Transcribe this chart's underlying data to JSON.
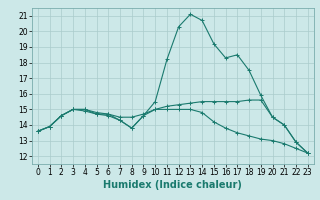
{
  "title": "",
  "xlabel": "Humidex (Indice chaleur)",
  "background_color": "#cce8e8",
  "grid_color": "#aacccc",
  "line_color": "#1a7a6e",
  "xlim": [
    -0.5,
    23.5
  ],
  "ylim": [
    11.5,
    21.5
  ],
  "xticks": [
    0,
    1,
    2,
    3,
    4,
    5,
    6,
    7,
    8,
    9,
    10,
    11,
    12,
    13,
    14,
    15,
    16,
    17,
    18,
    19,
    20,
    21,
    22,
    23
  ],
  "yticks": [
    12,
    13,
    14,
    15,
    16,
    17,
    18,
    19,
    20,
    21
  ],
  "line1_x": [
    0,
    1,
    2,
    3,
    4,
    5,
    6,
    7,
    8,
    9,
    10,
    11,
    12,
    13,
    14,
    15,
    16,
    17,
    18,
    19,
    20,
    21,
    22,
    23
  ],
  "line1_y": [
    13.6,
    13.9,
    14.6,
    15.0,
    15.0,
    14.7,
    14.7,
    14.3,
    13.8,
    14.6,
    15.5,
    18.2,
    20.3,
    21.1,
    20.7,
    19.2,
    18.3,
    18.5,
    17.5,
    15.9,
    14.5,
    14.0,
    12.9,
    12.2
  ],
  "line2_x": [
    0,
    1,
    2,
    3,
    4,
    5,
    6,
    7,
    8,
    9,
    10,
    11,
    12,
    13,
    14,
    15,
    16,
    17,
    18,
    19,
    20,
    21,
    22,
    23
  ],
  "line2_y": [
    13.6,
    13.9,
    14.6,
    15.0,
    15.0,
    14.8,
    14.7,
    14.5,
    14.5,
    14.7,
    15.0,
    15.2,
    15.3,
    15.4,
    15.5,
    15.5,
    15.5,
    15.5,
    15.6,
    15.6,
    14.5,
    14.0,
    12.9,
    12.2
  ],
  "line3_x": [
    0,
    1,
    2,
    3,
    4,
    5,
    6,
    7,
    8,
    9,
    10,
    11,
    12,
    13,
    14,
    15,
    16,
    17,
    18,
    19,
    20,
    21,
    22,
    23
  ],
  "line3_y": [
    13.6,
    13.9,
    14.6,
    15.0,
    14.9,
    14.7,
    14.6,
    14.3,
    13.8,
    14.6,
    15.0,
    15.0,
    15.0,
    15.0,
    14.8,
    14.2,
    13.8,
    13.5,
    13.3,
    13.1,
    13.0,
    12.8,
    12.5,
    12.2
  ],
  "xlabel_color": "#1a7a6e",
  "xlabel_fontsize": 7,
  "tick_fontsize": 5.5,
  "linewidth": 0.8,
  "markersize": 3
}
